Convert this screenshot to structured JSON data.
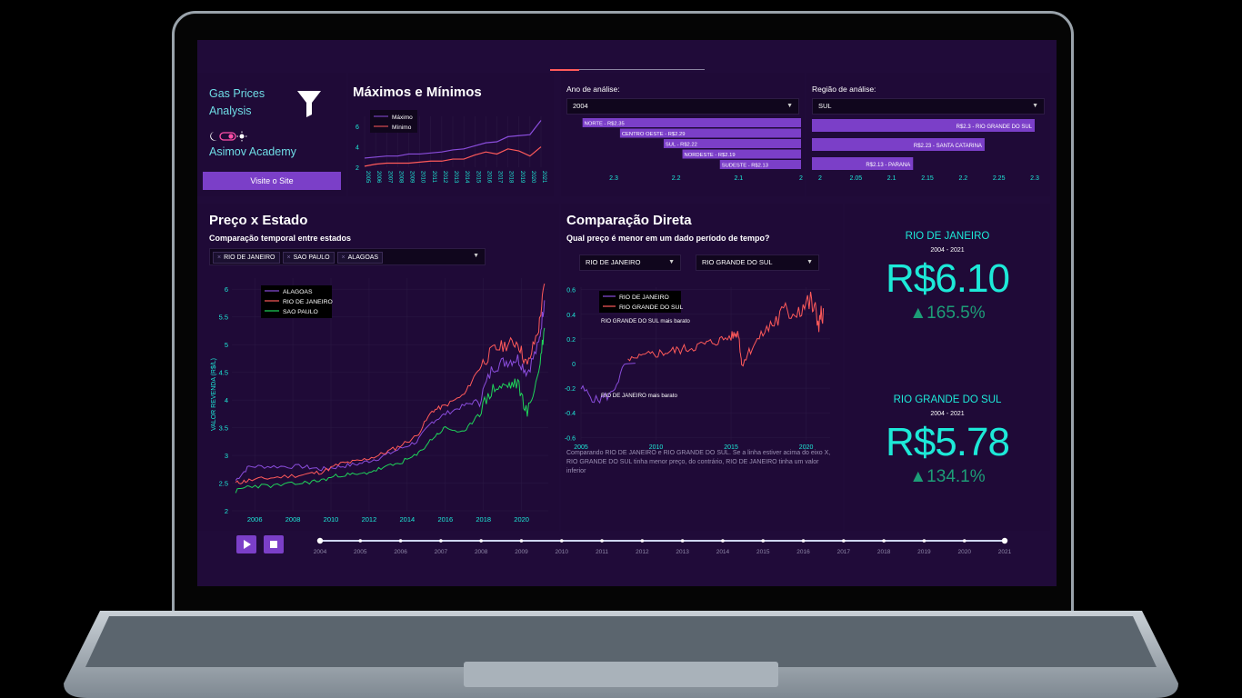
{
  "sidebar": {
    "brand": "Gas Prices Analysis",
    "academy": "Asimov Academy",
    "site_button": "Visite o Site"
  },
  "maxmin": {
    "title": "Máximos e Mínimos",
    "legend": [
      "Máximo",
      "Mínimo"
    ],
    "years": [
      "2005",
      "2006",
      "2007",
      "2008",
      "2009",
      "2010",
      "2011",
      "2012",
      "2013",
      "2014",
      "2015",
      "2016",
      "2017",
      "2018",
      "2019",
      "2020",
      "2021"
    ],
    "y_ticks": [
      "6",
      "4",
      "2"
    ],
    "max": [
      2.9,
      3.0,
      3.1,
      3.1,
      3.3,
      3.3,
      3.4,
      3.5,
      3.7,
      3.8,
      4.1,
      4.4,
      4.5,
      5.0,
      5.1,
      5.2,
      6.6
    ],
    "min": [
      2.1,
      2.3,
      2.4,
      2.4,
      2.4,
      2.5,
      2.6,
      2.6,
      2.8,
      2.8,
      3.2,
      3.5,
      3.3,
      3.8,
      3.6,
      3.1,
      4.0
    ]
  },
  "year_panel": {
    "label": "Ano de análise:",
    "selected": "2004",
    "bars": [
      {
        "label": "NORTE - R$2.35",
        "value": 2.35
      },
      {
        "label": "CENTRO OESTE - R$2.29",
        "value": 2.29
      },
      {
        "label": "SUL - R$2.22",
        "value": 2.22
      },
      {
        "label": "NORDESTE - R$2.19",
        "value": 2.19
      },
      {
        "label": "SUDESTE - R$2.13",
        "value": 2.13
      }
    ],
    "ticks": [
      "2.3",
      "2.2",
      "2.1",
      "2"
    ]
  },
  "region_panel": {
    "label": "Região de análise:",
    "selected": "SUL",
    "bars": [
      {
        "label": "R$2.3 - RIO GRANDE DO SUL",
        "value": 2.3
      },
      {
        "label": "R$2.23 - SANTA CATARINA",
        "value": 2.23
      },
      {
        "label": "R$2.13 - PARANA",
        "value": 2.13
      }
    ],
    "ticks": [
      "2",
      "2.05",
      "2.1",
      "2.15",
      "2.2",
      "2.25",
      "2.3"
    ]
  },
  "state_chart": {
    "title": "Preço x Estado",
    "subtitle": "Comparação temporal entre estados",
    "chips": [
      "RIO DE JANEIRO",
      "SAO PAULO",
      "ALAGOAS"
    ],
    "ylabel": "VALOR REVENDA (R$/L)",
    "y_ticks": [
      "6",
      "5.5",
      "5",
      "4.5",
      "4",
      "3.5",
      "3",
      "2.5",
      "2"
    ],
    "x_ticks": [
      "2006",
      "2008",
      "2010",
      "2012",
      "2014",
      "2016",
      "2018",
      "2020"
    ],
    "legend": [
      "ALAGOAS",
      "RIO DE JANEIRO",
      "SAO PAULO"
    ]
  },
  "compare": {
    "title": "Comparação Direta",
    "subtitle": "Qual preço é menor em um dado período de tempo?",
    "state_a": "RIO DE JANEIRO",
    "state_b": "RIO GRANDE DO SUL",
    "legend": [
      "RIO DE JANEIRO",
      "RIO GRANDE DO SUL"
    ],
    "note_top": "RIO GRANDE DO SUL mais barato",
    "note_bottom": "RIO DE JANEIRO mais barato",
    "y_ticks": [
      "0.6",
      "0.4",
      "0.2",
      "0",
      "-0.2",
      "-0.4",
      "-0.6"
    ],
    "x_ticks": [
      "2005",
      "2010",
      "2015",
      "2020"
    ],
    "caption": "Comparando RIO DE JANEIRO e RIO GRANDE DO SUL. Se a linha estiver acima do eixo X, RIO GRANDE DO SUL tinha menor preço, do contrário, RIO DE JANEIRO tinha um valor inferior"
  },
  "indicators": [
    {
      "state": "RIO DE JANEIRO",
      "period": "2004 - 2021",
      "value": "R$6.10",
      "delta": "▲165.5%"
    },
    {
      "state": "RIO GRANDE DO SUL",
      "period": "2004 - 2021",
      "value": "R$5.78",
      "delta": "▲134.1%"
    }
  ],
  "timeline": {
    "years": [
      "2004",
      "2005",
      "2006",
      "2007",
      "2008",
      "2009",
      "2010",
      "2011",
      "2012",
      "2013",
      "2014",
      "2015",
      "2016",
      "2017",
      "2018",
      "2019",
      "2020",
      "2021"
    ]
  },
  "colors": {
    "accent": "#7b3fc8",
    "teal": "#1de9d8",
    "red": "#ff5a5a",
    "green": "#1fd45a",
    "purple_line": "#8a4ddc"
  }
}
